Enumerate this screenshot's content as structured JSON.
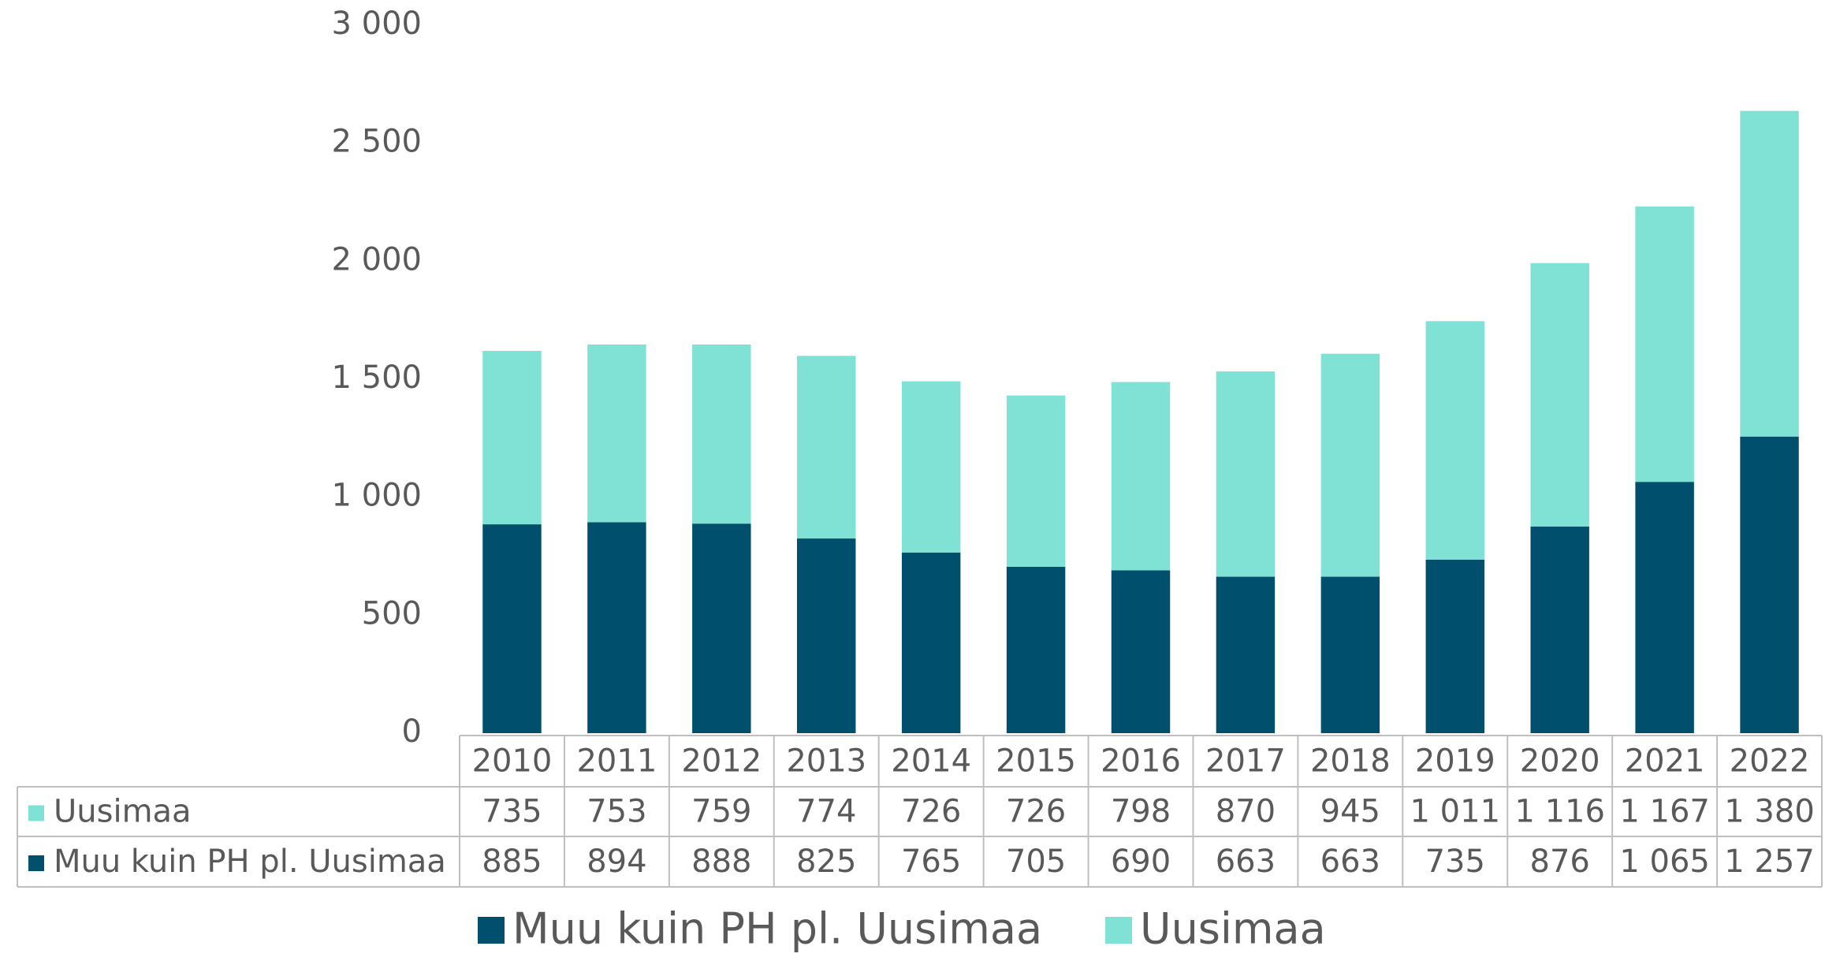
{
  "chart_data": {
    "type": "stacked_bar",
    "categories": [
      "2010",
      "2011",
      "2012",
      "2013",
      "2014",
      "2015",
      "2016",
      "2017",
      "2018",
      "2019",
      "2020",
      "2021",
      "2022"
    ],
    "series": [
      {
        "name": "Muu kuin PH pl. Uusimaa",
        "color": "#004f6d",
        "values": [
          885,
          894,
          888,
          825,
          765,
          705,
          690,
          663,
          663,
          735,
          876,
          1065,
          1257
        ],
        "value_labels": [
          "885",
          "894",
          "888",
          "825",
          "765",
          "705",
          "690",
          "663",
          "663",
          "735",
          "876",
          "1 065",
          "1 257"
        ]
      },
      {
        "name": "Uusimaa",
        "color": "#7fe2d5",
        "values": [
          735,
          753,
          759,
          774,
          726,
          726,
          798,
          870,
          945,
          1011,
          1116,
          1167,
          1380
        ],
        "value_labels": [
          "735",
          "753",
          "759",
          "774",
          "726",
          "726",
          "798",
          "870",
          "945",
          "1 011",
          "1 116",
          "1 167",
          "1 380"
        ]
      }
    ],
    "ylim": [
      0,
      3000
    ],
    "yticks": [
      0,
      500,
      {
        "value": 1000,
        "label": "1 000"
      },
      {
        "value": 1500,
        "label": "1 500"
      },
      {
        "value": 2000,
        "label": "2 000"
      },
      {
        "value": 2500,
        "label": "2 500"
      },
      {
        "value": 3000,
        "label": "3 000"
      }
    ],
    "legend": "bottom"
  }
}
